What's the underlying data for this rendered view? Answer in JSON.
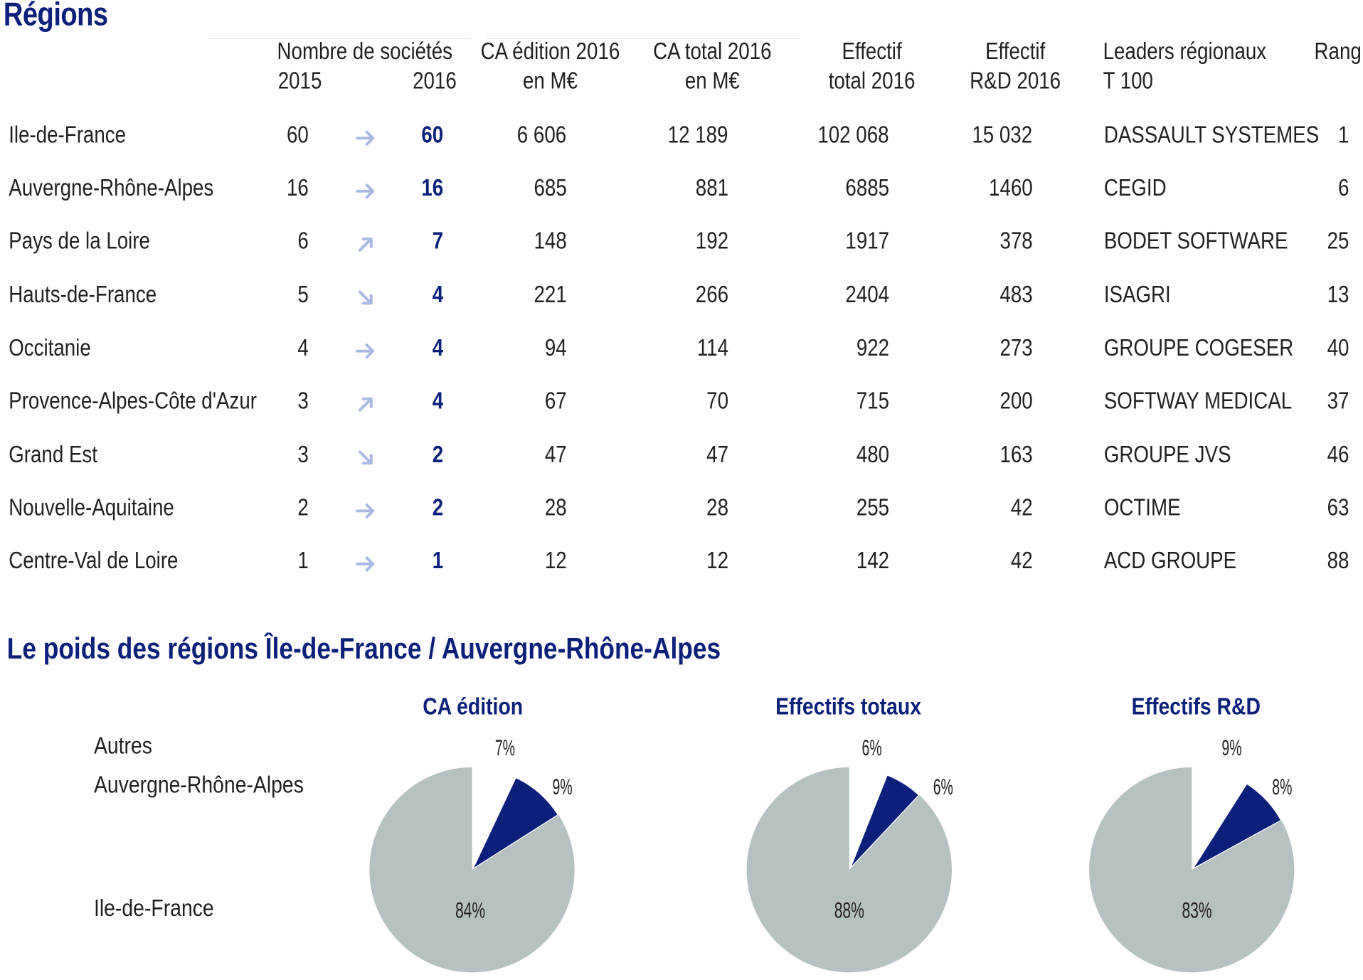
{
  "page": {
    "title": "Régions",
    "subtitle": "Le poids des régions Île-de-France / Auvergne-Rhône-Alpes"
  },
  "table": {
    "headers": {
      "nb_societes": "Nombre de sociétés",
      "y2015": "2015",
      "y2016": "2016",
      "ca_edition_1": "CA édition 2016",
      "ca_edition_2": "en M€",
      "ca_total_1": "CA total 2016",
      "ca_total_2": "en M€",
      "effectif_1": "Effectif",
      "effectif_2": "total 2016",
      "rd_1": "Effectif",
      "rd_2": "R&D 2016",
      "leaders_1": "Leaders régionaux",
      "leaders_2": "T 100",
      "rang": "Rang"
    },
    "rows": [
      {
        "region": "Ile-de-France",
        "n2015": "60",
        "trend": "flat",
        "n2016": "60",
        "ca_edition": "6 606",
        "ca_total": "12 189",
        "effectif": "102 068",
        "effectif_rd": "15 032",
        "leader": "DASSAULT SYSTEMES",
        "rang": "1"
      },
      {
        "region": "Auvergne-Rhône-Alpes",
        "n2015": "16",
        "trend": "flat",
        "n2016": "16",
        "ca_edition": "685",
        "ca_total": "881",
        "effectif": "6885",
        "effectif_rd": "1460",
        "leader": "CEGID",
        "rang": "6"
      },
      {
        "region": "Pays de la Loire",
        "n2015": "6",
        "trend": "up",
        "n2016": "7",
        "ca_edition": "148",
        "ca_total": "192",
        "effectif": "1917",
        "effectif_rd": "378",
        "leader": "BODET SOFTWARE",
        "rang": "25"
      },
      {
        "region": "Hauts-de-France",
        "n2015": "5",
        "trend": "down",
        "n2016": "4",
        "ca_edition": "221",
        "ca_total": "266",
        "effectif": "2404",
        "effectif_rd": "483",
        "leader": "ISAGRI",
        "rang": "13"
      },
      {
        "region": "Occitanie",
        "n2015": "4",
        "trend": "flat",
        "n2016": "4",
        "ca_edition": "94",
        "ca_total": "114",
        "effectif": "922",
        "effectif_rd": "273",
        "leader": "GROUPE COGESER",
        "rang": "40"
      },
      {
        "region": "Provence-Alpes-Côte d'Azur",
        "n2015": "3",
        "trend": "up",
        "n2016": "4",
        "ca_edition": "67",
        "ca_total": "70",
        "effectif": "715",
        "effectif_rd": "200",
        "leader": "SOFTWAY MEDICAL",
        "rang": "37"
      },
      {
        "region": "Grand Est",
        "n2015": "3",
        "trend": "down",
        "n2016": "2",
        "ca_edition": "47",
        "ca_total": "47",
        "effectif": "480",
        "effectif_rd": "163",
        "leader": "GROUPE JVS",
        "rang": "46"
      },
      {
        "region": "Nouvelle-Aquitaine",
        "n2015": "2",
        "trend": "flat",
        "n2016": "2",
        "ca_edition": "28",
        "ca_total": "28",
        "effectif": "255",
        "effectif_rd": "42",
        "leader": "OCTIME",
        "rang": "63"
      },
      {
        "region": "Centre-Val de Loire",
        "n2015": "1",
        "trend": "flat",
        "n2016": "1",
        "ca_edition": "12",
        "ca_total": "12",
        "effectif": "142",
        "effectif_rd": "42",
        "leader": "ACD GROUPE",
        "rang": "88"
      }
    ]
  },
  "legend": {
    "autres": "Autres",
    "ara": "Auvergne-Rhône-Alpes",
    "idf": "Ile-de-France"
  },
  "colors": {
    "navy": "#0c1f7a",
    "grey": "#b6c2c1",
    "arrow": "#a9b9e3"
  },
  "chart_data": [
    {
      "type": "pie",
      "title": "CA édition",
      "categories": [
        "Autres",
        "Auvergne-Rhône-Alpes",
        "Ile-de-France"
      ],
      "values": [
        7,
        9,
        84
      ],
      "labels": [
        "7%",
        "9%",
        "84%"
      ]
    },
    {
      "type": "pie",
      "title": "Effectifs totaux",
      "categories": [
        "Autres",
        "Auvergne-Rhône-Alpes",
        "Ile-de-France"
      ],
      "values": [
        6,
        6,
        88
      ],
      "labels": [
        "6%",
        "6%",
        "88%"
      ]
    },
    {
      "type": "pie",
      "title": "Effectifs R&D",
      "categories": [
        "Autres",
        "Auvergne-Rhône-Alpes",
        "Ile-de-France"
      ],
      "values": [
        9,
        8,
        83
      ],
      "labels": [
        "9%",
        "8%",
        "83%"
      ]
    }
  ]
}
